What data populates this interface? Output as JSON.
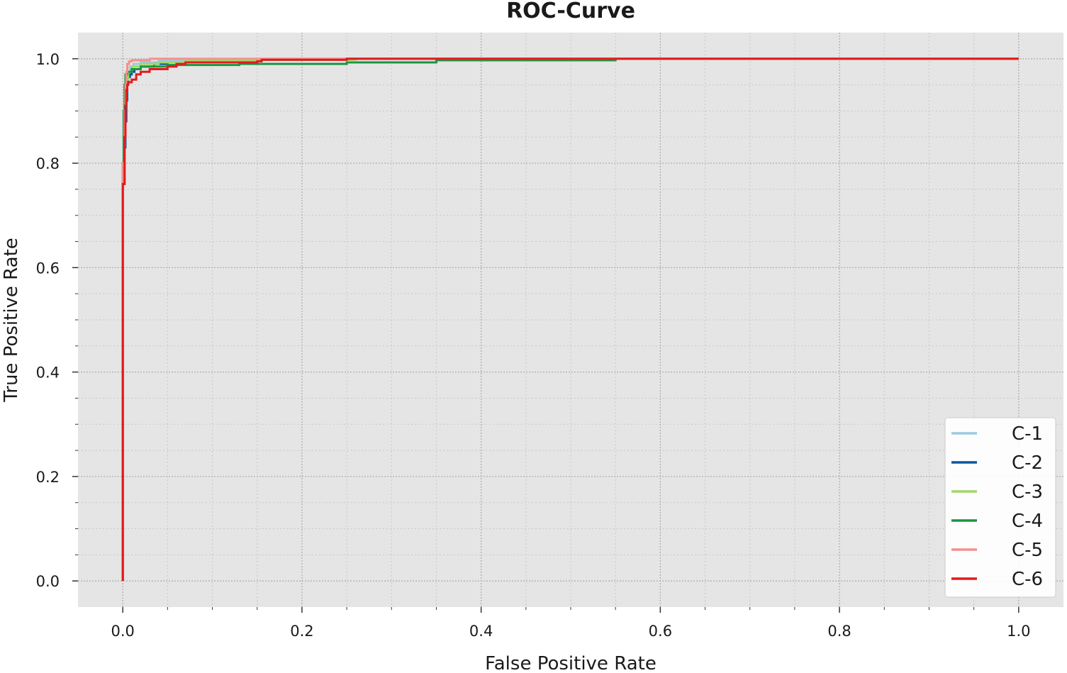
{
  "chart_data": {
    "type": "line",
    "title": "ROC-Curve",
    "xlabel": "False Positive Rate",
    "ylabel": "True Positive Rate",
    "xlim": [
      -0.05,
      1.05
    ],
    "ylim": [
      -0.05,
      1.05
    ],
    "x_ticks": [
      "0.0",
      "0.2",
      "0.4",
      "0.6",
      "0.8",
      "1.0"
    ],
    "y_ticks": [
      "0.0",
      "0.2",
      "0.4",
      "0.6",
      "0.8",
      "1.0"
    ],
    "grid": true,
    "legend_position": "bottom-right",
    "series": [
      {
        "name": "C-1",
        "color": "#9ecae1",
        "points": [
          [
            0,
            0
          ],
          [
            0,
            0.6
          ],
          [
            0.002,
            0.8
          ],
          [
            0.003,
            0.9
          ],
          [
            0.005,
            0.96
          ],
          [
            0.008,
            0.975
          ],
          [
            0.012,
            0.985
          ],
          [
            0.02,
            0.99
          ],
          [
            0.04,
            0.993
          ],
          [
            0.07,
            0.996
          ],
          [
            0.15,
            0.998
          ],
          [
            0.26,
            1.0
          ],
          [
            1.0,
            1.0
          ]
        ]
      },
      {
        "name": "C-2",
        "color": "#08589e",
        "points": [
          [
            0,
            0
          ],
          [
            0,
            0.62
          ],
          [
            0.002,
            0.76
          ],
          [
            0.003,
            0.83
          ],
          [
            0.004,
            0.88
          ],
          [
            0.005,
            0.92
          ],
          [
            0.006,
            0.95
          ],
          [
            0.008,
            0.965
          ],
          [
            0.01,
            0.97
          ],
          [
            0.013,
            0.975
          ],
          [
            0.02,
            0.98
          ],
          [
            0.035,
            0.985
          ],
          [
            0.05,
            0.99
          ],
          [
            0.08,
            0.993
          ],
          [
            0.15,
            0.995
          ],
          [
            0.25,
            0.998
          ],
          [
            0.26,
            1.0
          ],
          [
            1.0,
            1.0
          ]
        ]
      },
      {
        "name": "C-3",
        "color": "#a1d76a",
        "points": [
          [
            0,
            0
          ],
          [
            0,
            0.7
          ],
          [
            0.002,
            0.78
          ],
          [
            0.003,
            0.86
          ],
          [
            0.004,
            0.92
          ],
          [
            0.006,
            0.96
          ],
          [
            0.01,
            0.975
          ],
          [
            0.02,
            0.985
          ],
          [
            0.04,
            0.99
          ],
          [
            0.07,
            0.993
          ],
          [
            0.15,
            0.996
          ],
          [
            0.26,
            0.998
          ],
          [
            0.35,
            1.0
          ],
          [
            1.0,
            1.0
          ]
        ]
      },
      {
        "name": "C-4",
        "color": "#1a9641",
        "points": [
          [
            0,
            0
          ],
          [
            0,
            0.6
          ],
          [
            0.001,
            0.8
          ],
          [
            0.002,
            0.9
          ],
          [
            0.003,
            0.95
          ],
          [
            0.005,
            0.97
          ],
          [
            0.01,
            0.975
          ],
          [
            0.02,
            0.98
          ],
          [
            0.05,
            0.985
          ],
          [
            0.13,
            0.988
          ],
          [
            0.25,
            0.99
          ],
          [
            0.35,
            0.993
          ],
          [
            0.55,
            0.997
          ],
          [
            0.555,
            1.0
          ],
          [
            1.0,
            1.0
          ]
        ]
      },
      {
        "name": "C-5",
        "color": "#f4908e",
        "points": [
          [
            0,
            0
          ],
          [
            0,
            0.55
          ],
          [
            0.002,
            0.8
          ],
          [
            0.003,
            0.9
          ],
          [
            0.004,
            0.95
          ],
          [
            0.005,
            0.975
          ],
          [
            0.007,
            0.99
          ],
          [
            0.01,
            0.995
          ],
          [
            0.03,
            0.997
          ],
          [
            0.05,
            1.0
          ],
          [
            1.0,
            1.0
          ]
        ]
      },
      {
        "name": "C-6",
        "color": "#e31a1c",
        "points": [
          [
            0,
            0
          ],
          [
            0,
            0.55
          ],
          [
            0.002,
            0.76
          ],
          [
            0.003,
            0.85
          ],
          [
            0.004,
            0.91
          ],
          [
            0.005,
            0.94
          ],
          [
            0.006,
            0.95
          ],
          [
            0.01,
            0.955
          ],
          [
            0.015,
            0.96
          ],
          [
            0.02,
            0.97
          ],
          [
            0.03,
            0.975
          ],
          [
            0.05,
            0.98
          ],
          [
            0.06,
            0.985
          ],
          [
            0.07,
            0.99
          ],
          [
            0.15,
            0.993
          ],
          [
            0.155,
            0.995
          ],
          [
            0.25,
            0.998
          ],
          [
            0.26,
            1.0
          ],
          [
            1.0,
            1.0
          ]
        ]
      }
    ]
  }
}
